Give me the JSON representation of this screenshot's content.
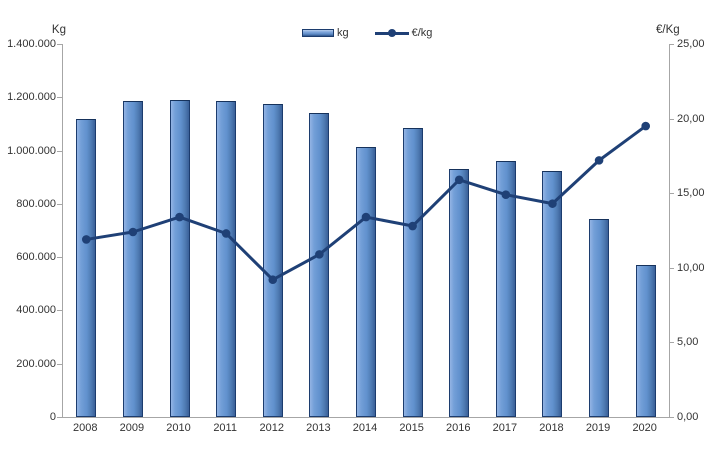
{
  "chart_data": {
    "type": "combo",
    "categories": [
      "2008",
      "2009",
      "2010",
      "2011",
      "2012",
      "2013",
      "2014",
      "2015",
      "2016",
      "2017",
      "2018",
      "2019",
      "2020"
    ],
    "series": [
      {
        "name": "kg",
        "type": "bar",
        "axis": "left",
        "values": [
          1120000,
          1185000,
          1190000,
          1185000,
          1175000,
          1140000,
          1015000,
          1085000,
          930000,
          960000,
          925000,
          745000,
          570000
        ]
      },
      {
        "name": "€/kg",
        "type": "line",
        "axis": "right",
        "values": [
          11.9,
          12.4,
          13.4,
          12.3,
          9.2,
          10.9,
          13.4,
          12.8,
          15.9,
          14.9,
          14.3,
          17.2,
          19.5
        ]
      }
    ],
    "left_axis": {
      "title": "Kg",
      "min": 0,
      "max": 1400000,
      "step": 200000,
      "ticks": [
        {
          "v": 0,
          "label": "0"
        },
        {
          "v": 200000,
          "label": "200.000"
        },
        {
          "v": 400000,
          "label": "400.000"
        },
        {
          "v": 600000,
          "label": "600.000"
        },
        {
          "v": 800000,
          "label": "800.000"
        },
        {
          "v": 1000000,
          "label": "1.000.000"
        },
        {
          "v": 1200000,
          "label": "1.200.000"
        },
        {
          "v": 1400000,
          "label": "1.400.000"
        }
      ]
    },
    "right_axis": {
      "title": "€/Kg",
      "min": 0,
      "max": 25,
      "step": 5,
      "ticks": [
        {
          "v": 0,
          "label": "0,00"
        },
        {
          "v": 5,
          "label": "5,00"
        },
        {
          "v": 10,
          "label": "10,00"
        },
        {
          "v": 15,
          "label": "15,00"
        },
        {
          "v": 20,
          "label": "20,00"
        },
        {
          "v": 25,
          "label": "25,00"
        }
      ]
    },
    "legend": {
      "position": "top",
      "items": [
        {
          "label": "kg"
        },
        {
          "label": "€/kg"
        }
      ]
    },
    "grid": false
  },
  "colors": {
    "bar_fill": "#6191cd",
    "bar_fill_light": "#93b4e4",
    "bar_fill_dark": "#3a6098",
    "bar_border": "#1c3c6e",
    "line": "#1f4076",
    "axis_line": "#a6a6a6",
    "text": "#333333"
  }
}
